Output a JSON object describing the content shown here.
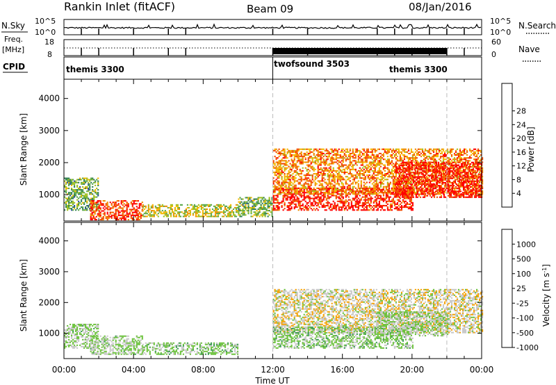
{
  "header": {
    "station": "Rankin Inlet (fitACF)",
    "beam": "Beam 09",
    "date": "08/Jan/2016"
  },
  "strip_labels": {
    "nsky": "N.Sky",
    "nsky_top": "10^5",
    "nsky_bottom": "10^0",
    "nsearch": "N.Search",
    "nsearch_top": "10^5",
    "nsearch_bottom": "10^0",
    "freq_top_label": "Freq.",
    "freq_bottom_label": "[MHz]",
    "freq_top": "18",
    "freq_bottom": "8",
    "nave": "Nave",
    "nave_top": "60",
    "nave_bottom": "0",
    "cpid": "CPID"
  },
  "cpid_segments": [
    {
      "label": "themis 3300",
      "start_hour": 0.0
    },
    {
      "label": "twofsound 3503",
      "start_hour": 12.0
    },
    {
      "label": "themis 3300",
      "start_hour": 22.0
    }
  ],
  "chart_data": [
    {
      "type": "heatmap",
      "title": "",
      "xlabel": "",
      "ylabel": "Slant Range [km]",
      "x_ticks": [
        "00:00",
        "04:00",
        "08:00",
        "12:00",
        "16:00",
        "20:00",
        "00:00"
      ],
      "x_range_hours": [
        0,
        24
      ],
      "ylim": [
        180,
        4600
      ],
      "y_ticks": [
        1000,
        2000,
        3000,
        4000
      ],
      "colorbar": {
        "label": "Power [dB]",
        "range": [
          0,
          30
        ],
        "ticks": [
          "4",
          "8",
          "12",
          "16",
          "20",
          "24",
          "28"
        ],
        "colors": [
          "#0000ff",
          "#3050a0",
          "#338055",
          "#5aa84a",
          "#a0c020",
          "#f5b800",
          "#f08c00",
          "#f24a00",
          "#ff0000"
        ]
      },
      "echo_regions": [
        {
          "hours": [
            0.0,
            2.0
          ],
          "range_km": [
            500,
            1500
          ],
          "power_db": 12
        },
        {
          "hours": [
            1.5,
            4.5
          ],
          "range_km": [
            200,
            800
          ],
          "power_db": 26
        },
        {
          "hours": [
            4.5,
            10.0
          ],
          "range_km": [
            300,
            700
          ],
          "power_db": 16
        },
        {
          "hours": [
            10.0,
            12.0
          ],
          "range_km": [
            300,
            900
          ],
          "power_db": 12
        },
        {
          "hours": [
            12.0,
            20.0
          ],
          "range_km": [
            500,
            1200
          ],
          "power_db": 28
        },
        {
          "hours": [
            12.0,
            24.0
          ],
          "range_km": [
            1000,
            2400
          ],
          "power_db": 22
        },
        {
          "hours": [
            19.0,
            24.0
          ],
          "range_km": [
            900,
            2000
          ],
          "power_db": 28
        }
      ]
    },
    {
      "type": "heatmap",
      "title": "",
      "xlabel": "Time UT",
      "ylabel": "Slant Range [km]",
      "x_ticks": [
        "00:00",
        "04:00",
        "08:00",
        "12:00",
        "16:00",
        "20:00",
        "00:00"
      ],
      "x_range_hours": [
        0,
        24
      ],
      "ylim": [
        180,
        4600
      ],
      "y_ticks": [
        1000,
        2000,
        3000,
        4000
      ],
      "colorbar": {
        "label": "Velocity [m s^-1]",
        "range": [
          -1250,
          1250
        ],
        "ticks": [
          "1000",
          "500",
          "100",
          "25",
          "-25",
          "-100",
          "-500",
          "-1000"
        ],
        "colors": [
          "#ff0000",
          "#f25a00",
          "#f5a000",
          "#c8c8c8",
          "#6cc23c",
          "#3a9a50",
          "#2f6aa0",
          "#1f3ab0"
        ]
      },
      "echo_regions": [
        {
          "hours": [
            0.0,
            2.0
          ],
          "range_km": [
            500,
            1300
          ],
          "velocity": 25
        },
        {
          "hours": [
            1.5,
            4.5
          ],
          "range_km": [
            300,
            900
          ],
          "velocity": 50
        },
        {
          "hours": [
            4.5,
            10.0
          ],
          "range_km": [
            300,
            700
          ],
          "velocity": 100
        },
        {
          "hours": [
            12.0,
            24.0
          ],
          "range_km": [
            1000,
            2400
          ],
          "velocity": -200
        },
        {
          "hours": [
            12.0,
            20.0
          ],
          "range_km": [
            500,
            1200
          ],
          "velocity": 100
        },
        {
          "hours": [
            18.0,
            22.0
          ],
          "range_km": [
            900,
            1700
          ],
          "velocity": 0
        }
      ]
    }
  ]
}
